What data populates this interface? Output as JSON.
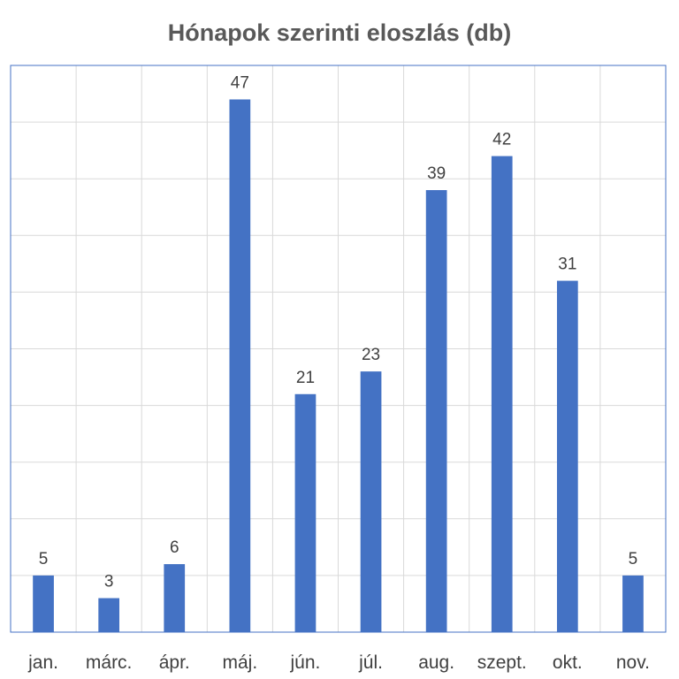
{
  "chart_data": {
    "type": "bar",
    "title": "Hónapok szerinti eloszlás (db)",
    "xlabel": "",
    "ylabel": "",
    "categories": [
      "jan.",
      "márc.",
      "ápr.",
      "máj.",
      "jún.",
      "júl.",
      "aug.",
      "szept.",
      "okt.",
      "nov."
    ],
    "values": [
      5,
      3,
      6,
      47,
      21,
      23,
      39,
      42,
      31,
      5
    ],
    "ylim": [
      0,
      50
    ],
    "grid": true,
    "legend": "none",
    "bar_color": "#4472C4",
    "border_color": "#4472C4",
    "grid_color": "#D9D9D9"
  }
}
